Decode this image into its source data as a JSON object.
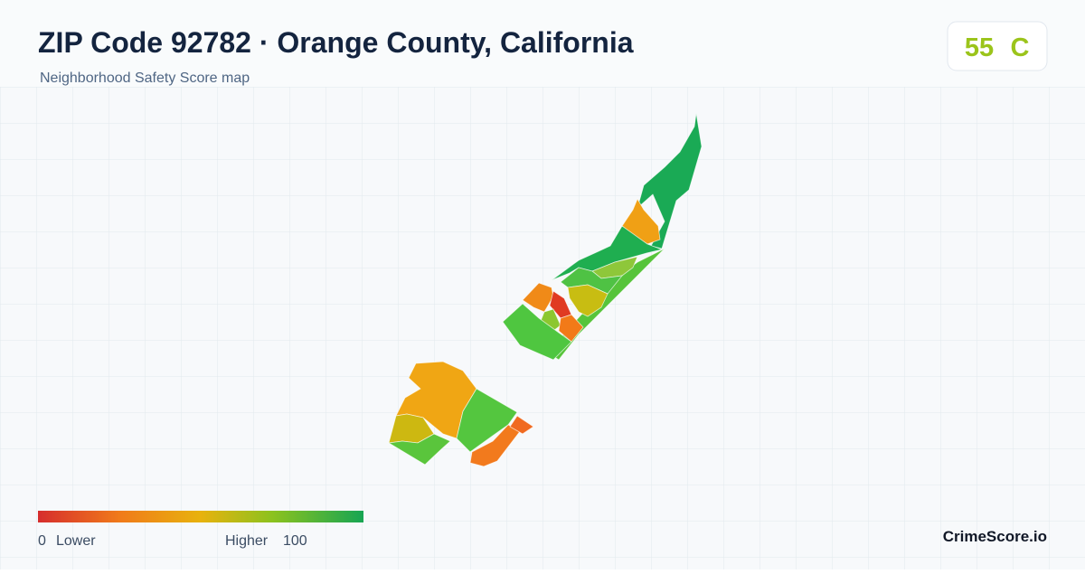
{
  "header": {
    "title": "ZIP Code 92782 · Orange County, California",
    "subtitle": "Neighborhood Safety Score map"
  },
  "score": {
    "value": 55,
    "grade": "C"
  },
  "legend": {
    "min": 0,
    "min_label": "Lower",
    "max_label": "Higher",
    "max": 100
  },
  "footer": {
    "brand": "CrimeScore.io"
  }
}
